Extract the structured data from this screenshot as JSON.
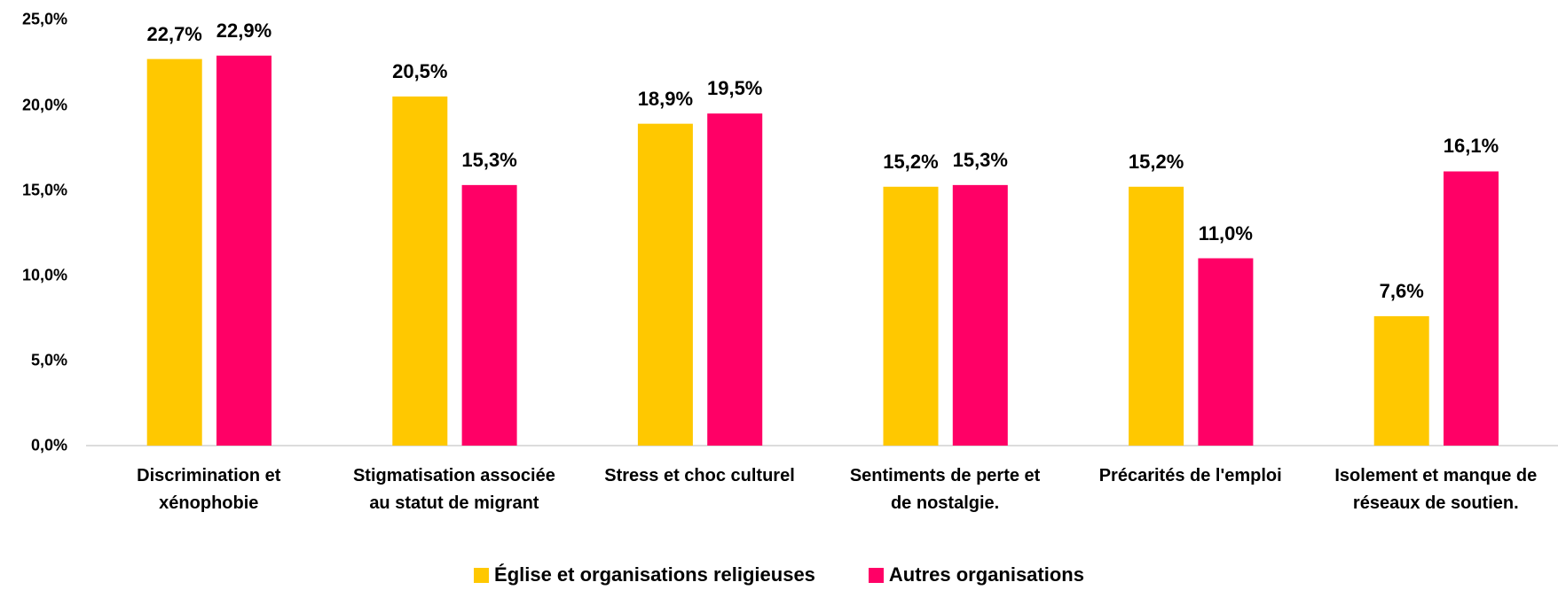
{
  "chart_data": {
    "type": "bar",
    "categories": [
      "Discrimination et\nxénophobie",
      "Stigmatisation associée\nau statut de migrant",
      "Stress et choc culturel",
      "Sentiments de perte et\nde nostalgie.",
      "Précarités de l'emploi",
      "Isolement et manque de\nréseaux de soutien."
    ],
    "series": [
      {
        "name": "Église et organisations religieuses",
        "color": "#FFC800",
        "values": [
          22.7,
          20.5,
          18.9,
          15.2,
          15.2,
          7.6
        ],
        "value_labels": [
          "22,7%",
          "20,5%",
          "18,9%",
          "15,2%",
          "15,2%",
          "7,6%"
        ]
      },
      {
        "name": "Autres organisations",
        "color": "#FF0066",
        "values": [
          22.9,
          15.3,
          19.5,
          15.3,
          11.0,
          16.1
        ],
        "value_labels": [
          "22,9%",
          "15,3%",
          "19,5%",
          "15,3%",
          "11,0%",
          "16,1%"
        ]
      }
    ],
    "ylim": [
      0,
      25
    ],
    "yticks": [
      {
        "value": 0,
        "label": "0,0%"
      },
      {
        "value": 5,
        "label": "5,0%"
      },
      {
        "value": 10,
        "label": "10,0%"
      },
      {
        "value": 15,
        "label": "15,0%"
      },
      {
        "value": 20,
        "label": "20,0%"
      },
      {
        "value": 25,
        "label": "25,0%"
      }
    ],
    "grid": false,
    "legend": "bottom"
  }
}
